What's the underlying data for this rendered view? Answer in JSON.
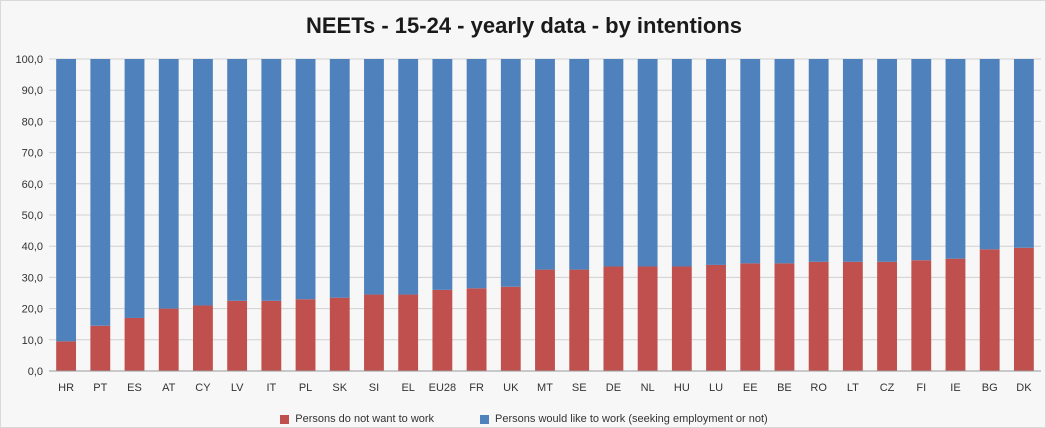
{
  "chart_data": {
    "type": "bar",
    "stacked": true,
    "title": "NEETs - 15-24 - yearly data - by intentions",
    "xlabel": "",
    "ylabel": "",
    "ylim": [
      0,
      100
    ],
    "ytick_labels": [
      "0,0",
      "10,0",
      "20,0",
      "30,0",
      "40,0",
      "50,0",
      "60,0",
      "70,0",
      "80,0",
      "90,0",
      "100,0"
    ],
    "grid": true,
    "legend_position": "bottom",
    "categories": [
      "HR",
      "PT",
      "ES",
      "AT",
      "CY",
      "LV",
      "IT",
      "PL",
      "SK",
      "SI",
      "EL",
      "EU28",
      "FR",
      "UK",
      "MT",
      "SE",
      "DE",
      "NL",
      "HU",
      "LU",
      "EE",
      "BE",
      "RO",
      "LT",
      "CZ",
      "FI",
      "IE",
      "BG",
      "DK"
    ],
    "series": [
      {
        "name": "Persons do not want to work",
        "color": "#c0504d",
        "values": [
          9.5,
          14.5,
          17.0,
          20.0,
          21.0,
          22.5,
          22.5,
          23.0,
          23.5,
          24.5,
          24.5,
          26.0,
          26.5,
          27.0,
          32.5,
          32.5,
          33.5,
          33.5,
          33.5,
          34.0,
          34.5,
          34.5,
          35.0,
          35.0,
          35.0,
          35.5,
          36.0,
          39.0,
          39.5
        ]
      },
      {
        "name": "Persons would like to work (seeking employment or not)",
        "color": "#4f81bd",
        "values": [
          90.5,
          85.5,
          83.0,
          80.0,
          79.0,
          77.5,
          77.5,
          77.0,
          76.5,
          75.5,
          75.5,
          74.0,
          73.5,
          73.0,
          67.5,
          67.5,
          66.5,
          66.5,
          66.5,
          66.0,
          65.5,
          65.5,
          65.0,
          65.0,
          65.0,
          64.5,
          64.0,
          61.0,
          60.5
        ]
      }
    ]
  }
}
